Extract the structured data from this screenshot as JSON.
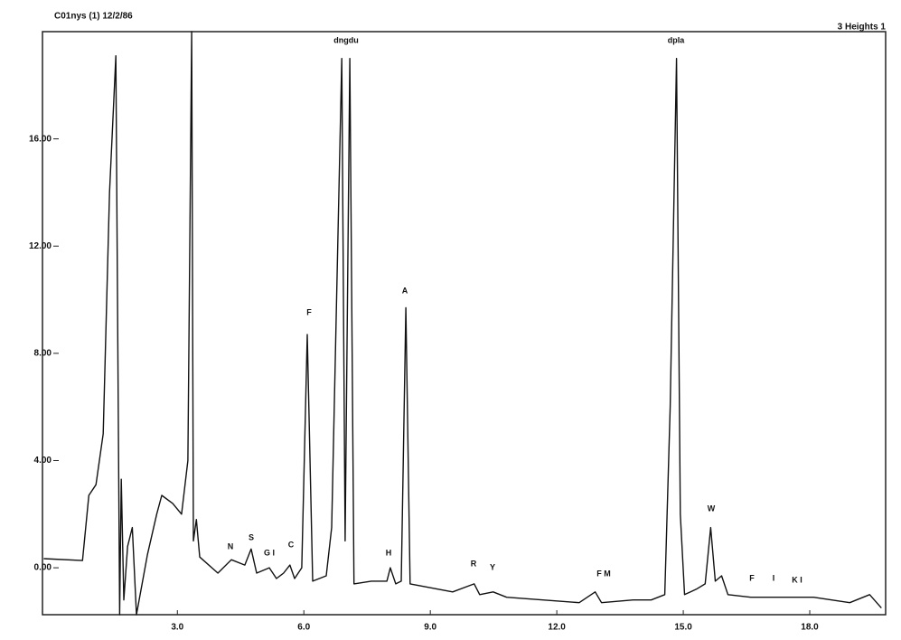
{
  "chart_data": {
    "type": "line",
    "title": "C01nys (1) 12/2/86",
    "subtitle": "3 Heights 1",
    "x": [
      -0.17,
      0.75,
      0.9,
      1.07,
      1.24,
      1.39,
      1.54,
      1.63,
      1.67,
      1.73,
      1.82,
      1.93,
      2.03,
      2.29,
      2.51,
      2.63,
      2.89,
      3.1,
      3.25,
      3.34,
      3.38,
      3.45,
      3.53,
      3.96,
      4.28,
      4.6,
      4.75,
      4.88,
      5.18,
      5.35,
      5.52,
      5.67,
      5.78,
      5.95,
      6.08,
      6.21,
      6.53,
      6.66,
      6.9,
      6.98,
      7.09,
      7.19,
      7.6,
      7.97,
      8.05,
      8.18,
      8.31,
      8.42,
      8.52,
      9.53,
      10.04,
      10.17,
      10.49,
      10.81,
      11.67,
      12.53,
      12.91,
      13.06,
      13.81,
      14.24,
      14.56,
      14.69,
      14.84,
      14.93,
      15.03,
      15.31,
      15.52,
      15.65,
      15.76,
      15.91,
      16.06,
      16.6,
      17.24,
      18.09,
      18.95,
      19.42,
      19.7
    ],
    "series": [
      {
        "color": "#111111",
        "values": [
          0.34,
          0.27,
          2.7,
          3.1,
          5.0,
          14,
          19.1,
          -1.75,
          3.3,
          -1.2,
          0.8,
          1.5,
          -1.75,
          0.5,
          2.0,
          2.7,
          2.4,
          2.0,
          4,
          20.0,
          1.0,
          1.8,
          0.4,
          -0.2,
          0.3,
          0.1,
          0.7,
          -0.2,
          0.0,
          -0.4,
          -0.2,
          0.1,
          -0.4,
          0,
          8.7,
          -0.5,
          -0.3,
          1.5,
          19.0,
          1.0,
          19.0,
          -0.6,
          -0.5,
          -0.5,
          0.0,
          -0.6,
          -0.5,
          9.7,
          -0.6,
          -0.9,
          -0.6,
          -1.0,
          -0.9,
          -1.1,
          -1.2,
          -1.3,
          -0.9,
          -1.3,
          -1.2,
          -1.2,
          -1.0,
          6,
          19.0,
          2,
          -1.0,
          -0.8,
          -0.6,
          1.5,
          -0.5,
          -0.3,
          -1.0,
          -1.1,
          -1.1,
          -1.1,
          -1.3,
          -1.0,
          -1.5
        ]
      }
    ],
    "annotations": [
      "N",
      "S",
      "G I",
      "C",
      "F",
      "dngdu",
      "H",
      "A",
      "R",
      "Y",
      "F M",
      "dpla",
      "W",
      "F",
      "I",
      "K I"
    ],
    "xlim": [
      -0.2,
      19.8
    ],
    "ylim": [
      -1.75,
      20
    ],
    "xticks": [
      {
        "value": 3,
        "label": "3.0"
      },
      {
        "value": 6,
        "label": "6.0"
      },
      {
        "value": 9,
        "label": "9.0"
      },
      {
        "value": 12,
        "label": "12.0"
      },
      {
        "value": 15,
        "label": "15.0"
      },
      {
        "value": 18,
        "label": "18.0"
      }
    ],
    "yticks": [
      {
        "value": 0,
        "label": "0.00"
      },
      {
        "value": 4,
        "label": "4.00"
      },
      {
        "value": 8,
        "label": "8.00"
      },
      {
        "value": 12,
        "label": "12.00"
      },
      {
        "value": 16,
        "label": "16.00"
      }
    ],
    "grid": false
  }
}
